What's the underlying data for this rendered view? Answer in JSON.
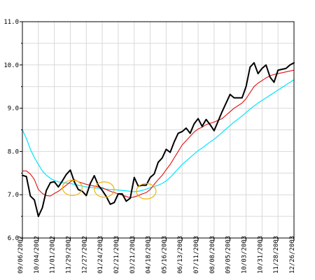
{
  "colors": {
    "background": "#ffffff",
    "grid": "#d9d9d9",
    "axis": "#000000",
    "price": "#000000",
    "ma_short": "#e01010",
    "ma_long": "#00e6ff",
    "highlight": "#f2b400"
  },
  "chart_data": {
    "type": "line",
    "grid": true,
    "legend": "none",
    "x_tick_labels": [
      "09/06/2002",
      "10/04/2002",
      "11/01/2002",
      "11/29/2002",
      "12/27/2002",
      "01/24/2003",
      "02/21/2003",
      "03/21/2003",
      "04/18/2003",
      "05/16/2003",
      "06/13/2003",
      "07/11/2003",
      "08/08/2003",
      "09/05/2003",
      "10/03/2003",
      "10/31/2003",
      "11/28/2003",
      "12/26/2003"
    ],
    "y_ticks": [
      "6.0",
      "7.0",
      "8.0",
      "9.0",
      "10.0",
      "11.0"
    ],
    "ylim": [
      6.0,
      11.0
    ],
    "xlim": [
      0,
      68
    ],
    "series": [
      {
        "role": "price",
        "values": [
          7.45,
          7.42,
          6.97,
          6.88,
          6.5,
          6.7,
          7.1,
          7.28,
          7.3,
          7.18,
          7.32,
          7.47,
          7.57,
          7.3,
          7.12,
          7.08,
          6.98,
          7.26,
          7.44,
          7.22,
          7.1,
          6.96,
          6.78,
          6.82,
          7.02,
          7.02,
          6.85,
          6.92,
          7.4,
          7.2,
          7.22,
          7.22,
          7.4,
          7.48,
          7.75,
          7.85,
          8.05,
          7.98,
          8.22,
          8.42,
          8.46,
          8.54,
          8.42,
          8.64,
          8.76,
          8.58,
          8.74,
          8.62,
          8.48,
          8.7,
          8.92,
          9.12,
          9.32,
          9.24,
          9.24,
          9.24,
          9.5,
          9.95,
          10.05,
          9.8,
          9.92,
          10.0,
          9.72,
          9.6,
          9.88,
          9.9,
          9.92,
          10.0,
          10.05
        ]
      },
      {
        "role": "moving-average-short",
        "values": [
          7.55,
          7.55,
          7.48,
          7.35,
          7.12,
          7.03,
          6.98,
          6.97,
          7.03,
          7.08,
          7.15,
          7.22,
          7.3,
          7.35,
          7.3,
          7.27,
          7.24,
          7.22,
          7.2,
          7.18,
          7.16,
          7.12,
          7.08,
          7.05,
          7.02,
          6.99,
          6.96,
          6.93,
          6.95,
          6.98,
          7.02,
          7.05,
          7.12,
          7.24,
          7.35,
          7.45,
          7.58,
          7.7,
          7.85,
          8.0,
          8.15,
          8.25,
          8.35,
          8.45,
          8.52,
          8.56,
          8.62,
          8.65,
          8.68,
          8.72,
          8.76,
          8.84,
          8.92,
          9.0,
          9.06,
          9.12,
          9.22,
          9.36,
          9.5,
          9.58,
          9.64,
          9.7,
          9.75,
          9.78,
          9.8,
          9.82,
          9.84,
          9.86,
          9.88
        ]
      },
      {
        "role": "moving-average-long",
        "values": [
          8.5,
          8.3,
          8.05,
          7.86,
          7.7,
          7.55,
          7.45,
          7.38,
          7.33,
          7.3,
          7.28,
          7.27,
          7.26,
          7.24,
          7.22,
          7.2,
          7.18,
          7.17,
          7.16,
          7.15,
          7.14,
          7.13,
          7.12,
          7.12,
          7.11,
          7.1,
          7.09,
          7.08,
          7.07,
          7.08,
          7.1,
          7.13,
          7.16,
          7.19,
          7.22,
          7.26,
          7.32,
          7.4,
          7.5,
          7.6,
          7.7,
          7.78,
          7.86,
          7.94,
          8.02,
          8.08,
          8.15,
          8.22,
          8.28,
          8.36,
          8.44,
          8.52,
          8.6,
          8.68,
          8.75,
          8.82,
          8.9,
          8.98,
          9.05,
          9.12,
          9.18,
          9.24,
          9.3,
          9.36,
          9.42,
          9.48,
          9.54,
          9.6,
          9.66
        ]
      }
    ],
    "highlights": [
      {
        "x": 12.5,
        "y": 7.16
      },
      {
        "x": 20.5,
        "y": 7.12
      },
      {
        "x": 31.0,
        "y": 7.08
      }
    ]
  }
}
